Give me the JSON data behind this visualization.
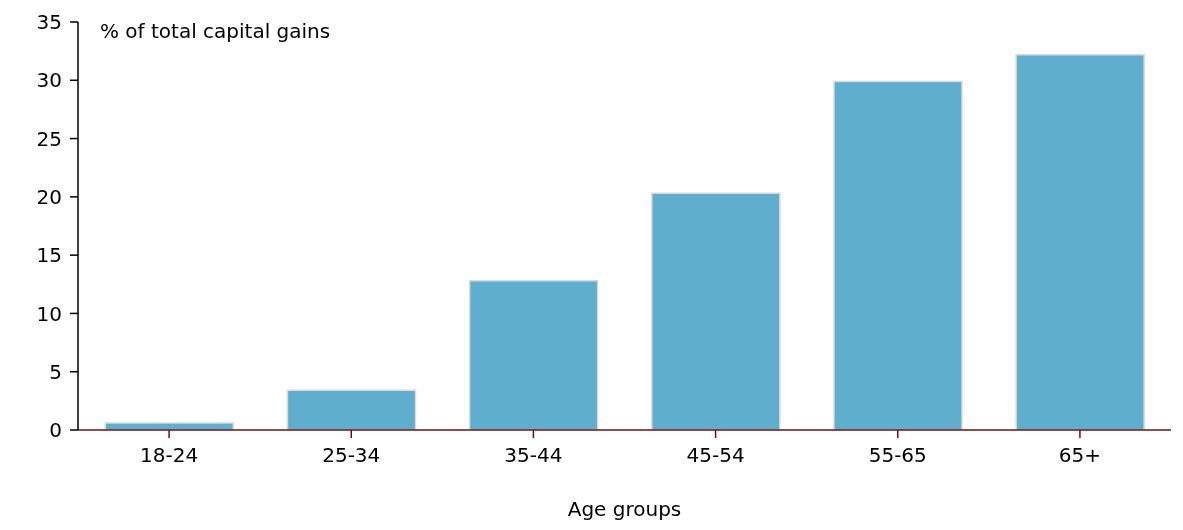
{
  "chart_data": {
    "type": "bar",
    "ylabel": "% of total capital gains",
    "xlabel": "Age groups",
    "categories": [
      "18-24",
      "25-34",
      "35-44",
      "45-54",
      "55-65",
      "65+"
    ],
    "values": [
      0.6,
      3.4,
      12.8,
      20.3,
      29.9,
      32.2
    ],
    "color": "#60aecd",
    "ylim": [
      0,
      35
    ],
    "yticks": [
      0,
      5,
      10,
      15,
      20,
      25,
      30,
      35
    ],
    "grid": false,
    "legend": false
  }
}
